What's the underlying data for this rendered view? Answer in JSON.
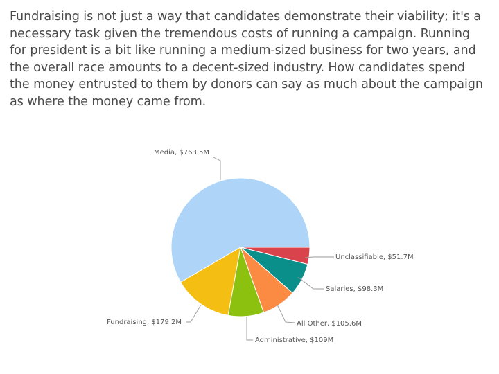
{
  "intro_text": "Fundraising is not just a way that candidates demonstrate their viability; it's a necessary task given the tremendous costs of running a campaign. Running for president is a bit like running a medium-sized business for two years, and the overall race amounts to a decent-sized industry. How candidates spend the money entrusted to them by donors can say as much about the campaign as where the money came from.",
  "chart_data": {
    "type": "pie",
    "title": "",
    "unit": "$M",
    "slices": [
      {
        "name": "Unclassifiable",
        "value": 51.7,
        "label": "Unclassifiable, $51.7M",
        "color": "#d9434b"
      },
      {
        "name": "Salaries",
        "value": 98.3,
        "label": "Salaries, $98.3M",
        "color": "#0b8f8a"
      },
      {
        "name": "All Other",
        "value": 105.6,
        "label": "All Other, $105.6M",
        "color": "#fb8b43"
      },
      {
        "name": "Administrative",
        "value": 109,
        "label": "Administrative, $109M",
        "color": "#8cc10f"
      },
      {
        "name": "Fundraising",
        "value": 179.2,
        "label": "Fundraising, $179.2M",
        "color": "#f5be12"
      },
      {
        "name": "Media",
        "value": 763.5,
        "label": "Media, $763.5M",
        "color": "#aed5f7"
      }
    ],
    "start": "3 o'clock, clockwise"
  }
}
